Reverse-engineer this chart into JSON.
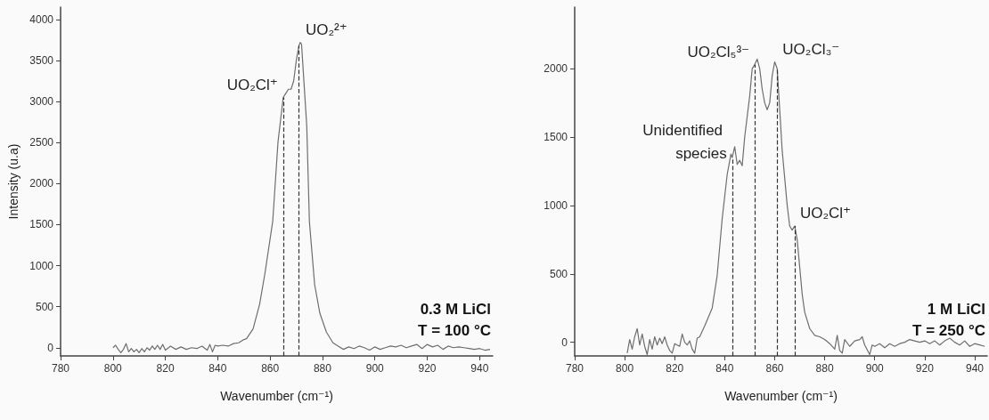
{
  "chart_data": [
    {
      "type": "line",
      "xlabel": "Wavenumber (cm⁻¹)",
      "ylabel": "Intensity (u.a)",
      "xlim": [
        780,
        945
      ],
      "xticks": [
        780,
        800,
        820,
        840,
        860,
        880,
        900,
        920,
        940
      ],
      "ylim": [
        -100,
        4150
      ],
      "yticks": [
        0,
        500,
        1000,
        1500,
        2000,
        2500,
        3000,
        3500,
        4000
      ],
      "grid": false,
      "marker": "none",
      "line_style": "solid",
      "series": [
        {
          "color": "#6e6e6e",
          "x": [
            800,
            801,
            802,
            803,
            804,
            805,
            806,
            807,
            808,
            809,
            810,
            811,
            812,
            813,
            814,
            815,
            816,
            817,
            818,
            819,
            820,
            822,
            824,
            826,
            828,
            830,
            832,
            834,
            836,
            837,
            838,
            839,
            840,
            842,
            844,
            846,
            848,
            850,
            851,
            853.5,
            856,
            858,
            861,
            863,
            865,
            866,
            867,
            868,
            869,
            870,
            871,
            871.5,
            872,
            873,
            874,
            875,
            877,
            879,
            881.5,
            884,
            886,
            888,
            890,
            892,
            894,
            896,
            898,
            900,
            902,
            904,
            906,
            908,
            910,
            912,
            914,
            916,
            918,
            920,
            922,
            924,
            926,
            928,
            930,
            932,
            934,
            936,
            938,
            940,
            942,
            944
          ],
          "values": [
            0,
            30,
            -20,
            -60,
            -20,
            50,
            -50,
            -10,
            -50,
            -20,
            -60,
            -10,
            -50,
            0,
            -30,
            20,
            -20,
            30,
            -20,
            40,
            -30,
            20,
            -20,
            10,
            -20,
            0,
            -10,
            20,
            -30,
            40,
            -50,
            30,
            20,
            30,
            20,
            50,
            60,
            100,
            110,
            230,
            530,
            900,
            1540,
            2500,
            3050,
            3100,
            3150,
            3150,
            3250,
            3500,
            3680,
            3720,
            3700,
            3200,
            2700,
            1540,
            770,
            420,
            190,
            60,
            20,
            -20,
            10,
            -10,
            20,
            0,
            -30,
            10,
            -20,
            0,
            20,
            10,
            30,
            0,
            20,
            40,
            -10,
            40,
            10,
            30,
            -20,
            20,
            0,
            10,
            0,
            -10,
            -20,
            -10,
            -30,
            -20
          ]
        }
      ],
      "ref_lines": [
        {
          "axis": "x",
          "value": 865,
          "color": "#333333",
          "line_style": "dashed"
        },
        {
          "axis": "x",
          "value": 871,
          "color": "#333333",
          "line_style": "dashed"
        }
      ],
      "annotations": [
        {
          "text": "UO₂Cl⁺",
          "x": 865,
          "y": 3050
        },
        {
          "text": "UO₂²⁺",
          "x": 871.5,
          "y": 3720
        },
        "0.3 M LiCl",
        "T = 100 °C"
      ]
    },
    {
      "type": "line",
      "xlabel": "Wavenumber (cm⁻¹)",
      "xlim": [
        780,
        945
      ],
      "xticks": [
        780,
        800,
        820,
        840,
        860,
        880,
        900,
        920,
        940
      ],
      "ylim": [
        -100,
        2450
      ],
      "yticks": [
        0,
        500,
        1000,
        1500,
        2000
      ],
      "grid": false,
      "marker": "none",
      "line_style": "solid",
      "series": [
        {
          "color": "#6e6e6e",
          "x": [
            801,
            802,
            803,
            804,
            805,
            806,
            807,
            808,
            809,
            810,
            811,
            812,
            813,
            814,
            815,
            816,
            817,
            818,
            819,
            820,
            822,
            823,
            824,
            825,
            826,
            827,
            828,
            829,
            830,
            832,
            835,
            837,
            839,
            841,
            842.5,
            843,
            844,
            845,
            846,
            847,
            848,
            850,
            851,
            852,
            853,
            854,
            855,
            856,
            857,
            858,
            859,
            860,
            861,
            862,
            863,
            864,
            865,
            866,
            867,
            868,
            869,
            870,
            871,
            872,
            874,
            876,
            878,
            880,
            882,
            884,
            885,
            886,
            887,
            888,
            890,
            892,
            894,
            895,
            896,
            898,
            899,
            900,
            902,
            904,
            906,
            908,
            910,
            912,
            914,
            916,
            918,
            920,
            922,
            924,
            926,
            928,
            930,
            932,
            934,
            936,
            938,
            940,
            942,
            944
          ],
          "values": [
            -80,
            20,
            -50,
            40,
            100,
            -20,
            60,
            -30,
            -90,
            20,
            -50,
            40,
            -20,
            30,
            -10,
            40,
            -20,
            -60,
            -80,
            -10,
            -30,
            60,
            0,
            -20,
            10,
            -50,
            -80,
            30,
            40,
            120,
            250,
            490,
            904,
            1227,
            1376,
            1350,
            1430,
            1300,
            1330,
            1290,
            1500,
            1800,
            2000,
            2030,
            2070,
            2000,
            1850,
            1750,
            1700,
            1750,
            1950,
            2050,
            2000,
            1700,
            1400,
            1200,
            1000,
            850,
            820,
            850,
            750,
            550,
            350,
            220,
            100,
            50,
            40,
            20,
            -10,
            -50,
            50,
            -60,
            -80,
            20,
            -30,
            10,
            20,
            40,
            -20,
            -90,
            -20,
            -30,
            -10,
            -40,
            -10,
            -30,
            -10,
            0,
            20,
            10,
            0,
            10,
            -10,
            10,
            -20,
            10,
            30,
            0,
            -20,
            10,
            -30,
            -10,
            -20,
            -30
          ]
        }
      ],
      "ref_lines": [
        {
          "axis": "x",
          "value": 843,
          "color": "#333333",
          "line_style": "dashed"
        },
        {
          "axis": "x",
          "value": 852,
          "color": "#333333",
          "line_style": "dashed"
        },
        {
          "axis": "x",
          "value": 861,
          "color": "#333333",
          "line_style": "dashed"
        },
        {
          "axis": "x",
          "value": 868,
          "color": "#333333",
          "line_style": "dashed"
        }
      ],
      "annotations": [
        {
          "text": "Unidentified species",
          "x": 843,
          "y": 1376
        },
        {
          "text": "UO₂Cl₅³⁻",
          "x": 852,
          "y": 2030
        },
        {
          "text": "UO₂Cl₃⁻",
          "x": 861,
          "y": 2050
        },
        {
          "text": "UO₂Cl⁺",
          "x": 868,
          "y": 850
        },
        "1 M LiCl",
        "T = 250 °C"
      ]
    }
  ]
}
